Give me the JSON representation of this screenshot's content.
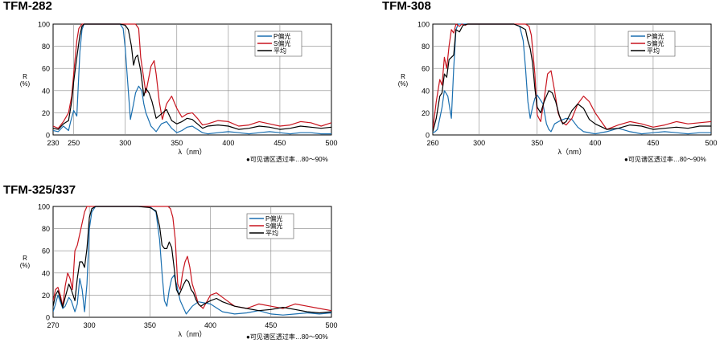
{
  "chart_data": [
    {
      "type": "line",
      "title": "TFM-282",
      "ylabel_top": "R",
      "ylabel_bottom": "(%)",
      "xlabel": "λ（nm）",
      "note": "●可见谱区透过率…80～90%",
      "xlim": [
        230,
        500
      ],
      "ylim": [
        0,
        100
      ],
      "x_ticks": [
        "230",
        "250",
        "300",
        "350",
        "400",
        "450",
        "500"
      ],
      "x_tick_values": [
        230,
        250,
        300,
        350,
        400,
        450,
        500
      ],
      "y_ticks": [
        "0",
        "20",
        "40",
        "60",
        "80",
        "100"
      ],
      "y_tick_values": [
        0,
        20,
        40,
        60,
        80,
        100
      ],
      "grid": true,
      "legend_position": "top-right",
      "series": [
        {
          "name": "P偏光",
          "color": "#1a6fb0",
          "x": [
            230,
            235,
            240,
            245,
            247,
            250,
            253,
            256,
            258,
            260,
            265,
            270,
            280,
            290,
            295,
            298,
            300,
            305,
            308,
            310,
            313,
            316,
            318,
            320,
            325,
            330,
            335,
            340,
            345,
            350,
            355,
            360,
            365,
            370,
            375,
            380,
            390,
            400,
            410,
            420,
            430,
            440,
            450,
            460,
            470,
            480,
            490,
            500
          ],
          "y": [
            4,
            3,
            8,
            4,
            12,
            22,
            17,
            75,
            95,
            100,
            100,
            100,
            100,
            100,
            100,
            96,
            78,
            14,
            28,
            38,
            44,
            40,
            28,
            20,
            8,
            3,
            10,
            12,
            6,
            2,
            4,
            7,
            8,
            5,
            2,
            1,
            2,
            3,
            2,
            1,
            2,
            3,
            2,
            1,
            2,
            2,
            1,
            1
          ]
        },
        {
          "name": "S偏光",
          "color": "#c8141e",
          "x": [
            230,
            235,
            240,
            245,
            248,
            250,
            253,
            255,
            258,
            260,
            265,
            270,
            280,
            290,
            300,
            305,
            310,
            313,
            315,
            320,
            325,
            328,
            330,
            333,
            336,
            340,
            345,
            350,
            355,
            360,
            365,
            370,
            375,
            380,
            390,
            400,
            410,
            420,
            430,
            440,
            450,
            460,
            470,
            480,
            490,
            500
          ],
          "y": [
            8,
            6,
            12,
            20,
            35,
            55,
            85,
            96,
            100,
            100,
            100,
            100,
            100,
            100,
            100,
            100,
            100,
            96,
            70,
            38,
            62,
            67,
            55,
            30,
            14,
            28,
            35,
            24,
            16,
            19,
            20,
            15,
            9,
            10,
            13,
            12,
            8,
            9,
            12,
            10,
            8,
            9,
            12,
            11,
            8,
            11
          ]
        },
        {
          "name": "平均",
          "color": "#000000",
          "x": [
            230,
            235,
            240,
            245,
            248,
            250,
            253,
            256,
            258,
            260,
            265,
            270,
            280,
            290,
            295,
            300,
            303,
            306,
            308,
            310,
            312,
            315,
            318,
            320,
            323,
            326,
            330,
            335,
            340,
            345,
            350,
            355,
            360,
            365,
            370,
            375,
            380,
            390,
            400,
            410,
            420,
            430,
            440,
            450,
            460,
            470,
            480,
            490,
            500
          ],
          "y": [
            6,
            5,
            10,
            13,
            30,
            48,
            70,
            90,
            98,
            100,
            100,
            100,
            100,
            100,
            100,
            99,
            95,
            80,
            63,
            70,
            72,
            58,
            35,
            42,
            38,
            30,
            15,
            19,
            23,
            13,
            10,
            12,
            15,
            14,
            10,
            6,
            8,
            9,
            8,
            5,
            6,
            8,
            7,
            5,
            6,
            8,
            7,
            6,
            7
          ]
        }
      ]
    },
    {
      "type": "line",
      "title": "TFM-308",
      "ylabel_top": "R",
      "ylabel_bottom": "(%)",
      "xlabel": "λ（nm）",
      "note": "●可见谱区透过率…80～90%",
      "xlim": [
        260,
        500
      ],
      "ylim": [
        0,
        100
      ],
      "x_ticks": [
        "260",
        "300",
        "350",
        "400",
        "450",
        "500"
      ],
      "x_tick_values": [
        260,
        300,
        350,
        400,
        450,
        500
      ],
      "y_ticks": [
        "0",
        "20",
        "40",
        "60",
        "80",
        "100"
      ],
      "y_tick_values": [
        0,
        20,
        40,
        60,
        80,
        100
      ],
      "grid": true,
      "legend_position": "top-right",
      "series": [
        {
          "name": "P偏光",
          "color": "#1a6fb0",
          "x": [
            260,
            262,
            264,
            266,
            268,
            270,
            273,
            276,
            278,
            280,
            282,
            285,
            290,
            300,
            310,
            320,
            330,
            335,
            338,
            340,
            342,
            344,
            346,
            348,
            350,
            355,
            358,
            360,
            362,
            365,
            370,
            375,
            380,
            385,
            390,
            400,
            410,
            420,
            430,
            440,
            450,
            460,
            470,
            480,
            490,
            500
          ],
          "y": [
            2,
            3,
            5,
            15,
            25,
            40,
            35,
            15,
            60,
            95,
            100,
            100,
            100,
            100,
            100,
            100,
            100,
            98,
            85,
            60,
            30,
            15,
            25,
            33,
            36,
            28,
            10,
            5,
            3,
            10,
            13,
            15,
            14,
            7,
            3,
            1,
            3,
            6,
            3,
            1,
            2,
            3,
            2,
            1,
            2,
            2
          ]
        },
        {
          "name": "S偏光",
          "color": "#c8141e",
          "x": [
            260,
            263,
            266,
            268,
            270,
            272,
            274,
            276,
            278,
            280,
            283,
            285,
            288,
            290,
            295,
            300,
            310,
            320,
            330,
            340,
            343,
            345,
            348,
            350,
            353,
            356,
            359,
            362,
            365,
            368,
            371,
            375,
            380,
            385,
            390,
            395,
            400,
            410,
            420,
            430,
            440,
            450,
            460,
            470,
            480,
            490,
            500
          ],
          "y": [
            5,
            30,
            50,
            45,
            70,
            60,
            80,
            95,
            92,
            100,
            98,
            100,
            99,
            100,
            100,
            100,
            100,
            100,
            100,
            100,
            98,
            90,
            55,
            18,
            12,
            32,
            55,
            58,
            40,
            20,
            12,
            9,
            15,
            28,
            35,
            30,
            20,
            5,
            9,
            12,
            10,
            7,
            9,
            12,
            10,
            11,
            12
          ]
        },
        {
          "name": "平均",
          "color": "#000000",
          "x": [
            260,
            263,
            266,
            268,
            270,
            272,
            274,
            276,
            278,
            280,
            283,
            286,
            290,
            300,
            310,
            320,
            330,
            335,
            340,
            342,
            344,
            346,
            348,
            350,
            353,
            356,
            360,
            363,
            366,
            369,
            372,
            375,
            380,
            385,
            390,
            395,
            400,
            410,
            420,
            430,
            440,
            450,
            460,
            470,
            480,
            490,
            500
          ],
          "y": [
            3,
            15,
            35,
            38,
            55,
            52,
            68,
            70,
            72,
            95,
            93,
            99,
            100,
            100,
            100,
            100,
            100,
            98,
            95,
            85,
            78,
            65,
            42,
            25,
            20,
            30,
            40,
            38,
            30,
            18,
            10,
            12,
            22,
            28,
            24,
            14,
            10,
            5,
            6,
            9,
            8,
            5,
            6,
            7,
            6,
            8,
            8
          ]
        }
      ]
    },
    {
      "type": "line",
      "title": "TFM-325/337",
      "ylabel_top": "R",
      "ylabel_bottom": "(%)",
      "xlabel": "λ（nm）",
      "note": "●可见谱区透过率…80～90%",
      "xlim": [
        270,
        500
      ],
      "ylim": [
        0,
        100
      ],
      "x_ticks": [
        "270",
        "300",
        "350",
        "400",
        "450",
        "500"
      ],
      "x_tick_values": [
        270,
        300,
        350,
        400,
        450,
        500
      ],
      "y_ticks": [
        "0",
        "20",
        "40",
        "60",
        "80",
        "100"
      ],
      "y_tick_values": [
        0,
        20,
        40,
        60,
        80,
        100
      ],
      "grid": true,
      "legend_position": "top-right",
      "series": [
        {
          "name": "P偏光",
          "color": "#1a6fb0",
          "x": [
            270,
            272,
            274,
            276,
            278,
            280,
            283,
            285,
            288,
            290,
            292,
            294,
            296,
            298,
            300,
            302,
            305,
            310,
            320,
            330,
            340,
            350,
            355,
            358,
            360,
            362,
            364,
            366,
            368,
            370,
            372,
            375,
            380,
            385,
            390,
            400,
            410,
            420,
            430,
            440,
            450,
            460,
            470,
            480,
            490,
            500
          ],
          "y": [
            5,
            12,
            20,
            14,
            8,
            10,
            18,
            15,
            5,
            12,
            35,
            25,
            5,
            30,
            80,
            95,
            100,
            100,
            100,
            100,
            100,
            100,
            95,
            70,
            40,
            15,
            10,
            25,
            35,
            38,
            30,
            15,
            3,
            10,
            14,
            12,
            5,
            3,
            4,
            6,
            3,
            2,
            3,
            4,
            3,
            4
          ]
        },
        {
          "name": "S偏光",
          "color": "#c8141e",
          "x": [
            270,
            272,
            274,
            276,
            278,
            280,
            282,
            284,
            286,
            288,
            290,
            292,
            294,
            296,
            298,
            300,
            305,
            310,
            320,
            330,
            340,
            350,
            360,
            365,
            367,
            369,
            371,
            373,
            375,
            377,
            379,
            381,
            383,
            385,
            388,
            390,
            392,
            394,
            396,
            398,
            400,
            405,
            410,
            415,
            420,
            430,
            440,
            450,
            460,
            470,
            480,
            490,
            500
          ],
          "y": [
            15,
            25,
            27,
            20,
            10,
            28,
            40,
            35,
            25,
            60,
            65,
            75,
            85,
            95,
            100,
            100,
            100,
            100,
            100,
            100,
            100,
            100,
            100,
            100,
            98,
            90,
            70,
            30,
            25,
            40,
            50,
            55,
            45,
            30,
            20,
            12,
            10,
            8,
            12,
            16,
            20,
            22,
            18,
            14,
            10,
            8,
            12,
            10,
            8,
            12,
            10,
            8,
            6
          ]
        },
        {
          "name": "平均",
          "color": "#000000",
          "x": [
            270,
            272,
            274,
            276,
            278,
            280,
            283,
            285,
            288,
            290,
            292,
            294,
            296,
            298,
            300,
            302,
            305,
            310,
            320,
            330,
            340,
            350,
            355,
            358,
            360,
            362,
            364,
            366,
            368,
            370,
            372,
            374,
            376,
            378,
            380,
            382,
            384,
            386,
            388,
            390,
            392,
            395,
            400,
            405,
            410,
            420,
            430,
            440,
            450,
            460,
            470,
            480,
            490,
            500
          ],
          "y": [
            10,
            20,
            24,
            17,
            9,
            18,
            30,
            25,
            15,
            35,
            50,
            50,
            45,
            62,
            90,
            98,
            100,
            100,
            100,
            100,
            100,
            99,
            96,
            82,
            65,
            62,
            62,
            68,
            63,
            45,
            25,
            20,
            25,
            30,
            34,
            32,
            25,
            22,
            16,
            12,
            10,
            12,
            15,
            17,
            14,
            10,
            8,
            6,
            7,
            9,
            7,
            5,
            4,
            5
          ]
        }
      ]
    }
  ]
}
